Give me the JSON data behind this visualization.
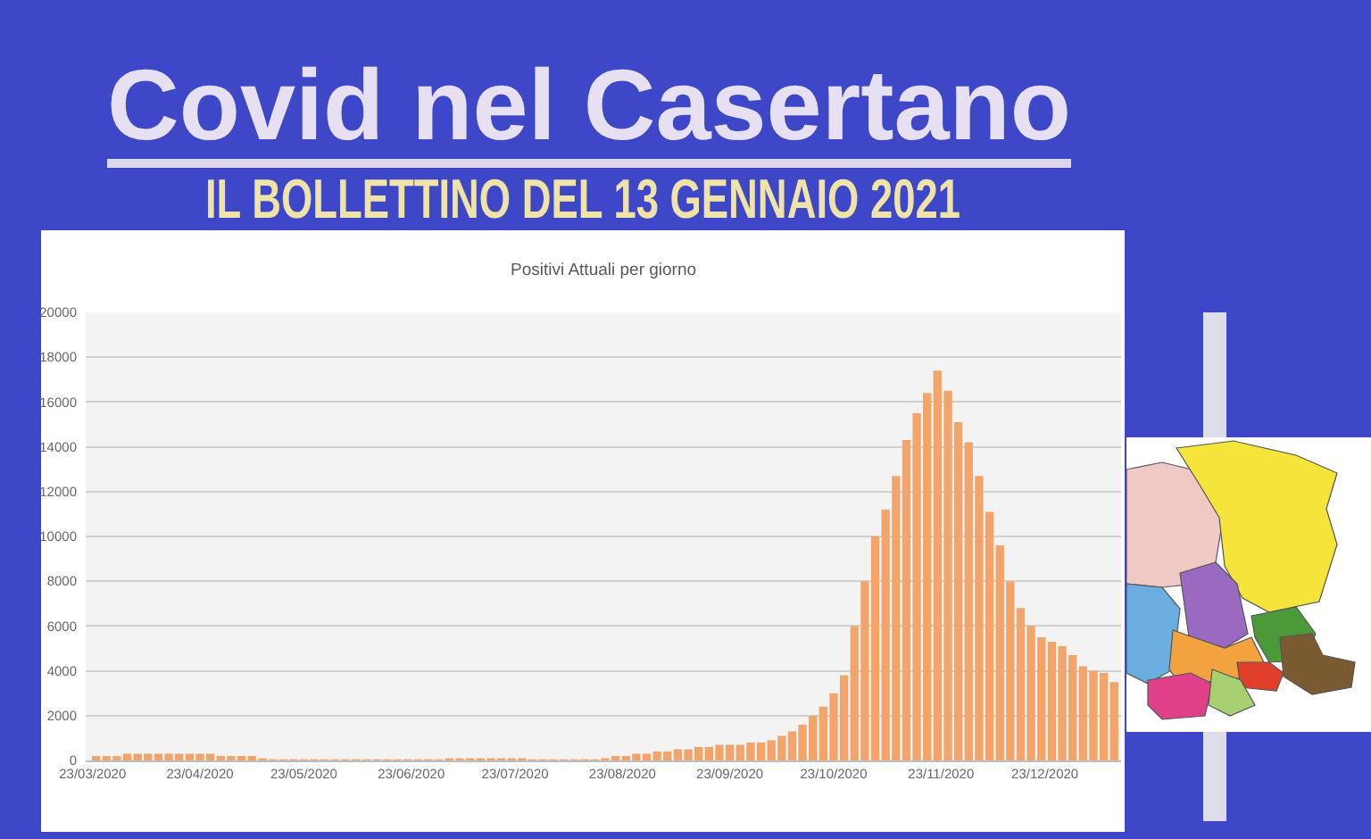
{
  "chart_data": {
    "type": "bar",
    "title": "Covid nel Casertano",
    "subtitle": "IL BOLLETTINO DEL 13 GENNAIO 2021",
    "annotations": [
      "Positivi Attuali per giorno"
    ],
    "x": [
      "2020-03-24",
      "2020-03-27",
      "2020-03-30",
      "2020-04-02",
      "2020-04-05",
      "2020-04-08",
      "2020-04-11",
      "2020-04-14",
      "2020-04-17",
      "2020-04-20",
      "2020-04-23",
      "2020-04-26",
      "2020-04-29",
      "2020-05-02",
      "2020-05-05",
      "2020-05-08",
      "2020-05-11",
      "2020-05-14",
      "2020-05-17",
      "2020-05-20",
      "2020-05-23",
      "2020-05-26",
      "2020-05-29",
      "2020-06-01",
      "2020-06-04",
      "2020-06-07",
      "2020-06-10",
      "2020-06-13",
      "2020-06-16",
      "2020-06-19",
      "2020-06-22",
      "2020-06-25",
      "2020-06-28",
      "2020-07-01",
      "2020-07-04",
      "2020-07-07",
      "2020-07-10",
      "2020-07-13",
      "2020-07-16",
      "2020-07-19",
      "2020-07-22",
      "2020-07-25",
      "2020-07-28",
      "2020-07-31",
      "2020-08-03",
      "2020-08-06",
      "2020-08-09",
      "2020-08-12",
      "2020-08-15",
      "2020-08-18",
      "2020-08-21",
      "2020-08-24",
      "2020-08-27",
      "2020-08-30",
      "2020-09-02",
      "2020-09-05",
      "2020-09-08",
      "2020-09-11",
      "2020-09-14",
      "2020-09-17",
      "2020-09-20",
      "2020-09-23",
      "2020-09-26",
      "2020-09-29",
      "2020-10-02",
      "2020-10-05",
      "2020-10-08",
      "2020-10-11",
      "2020-10-14",
      "2020-10-17",
      "2020-10-20",
      "2020-10-23",
      "2020-10-26",
      "2020-10-29",
      "2020-11-01",
      "2020-11-04",
      "2020-11-07",
      "2020-11-10",
      "2020-11-13",
      "2020-11-16",
      "2020-11-19",
      "2020-11-22",
      "2020-11-25",
      "2020-11-28",
      "2020-12-01",
      "2020-12-04",
      "2020-12-07",
      "2020-12-10",
      "2020-12-13",
      "2020-12-16",
      "2020-12-19",
      "2020-12-22",
      "2020-12-25",
      "2020-12-28",
      "2020-12-31",
      "2021-01-03",
      "2021-01-06",
      "2021-01-09",
      "2021-01-12"
    ],
    "values": [
      200,
      200,
      200,
      300,
      300,
      300,
      300,
      300,
      300,
      300,
      300,
      300,
      200,
      200,
      200,
      200,
      100,
      50,
      50,
      50,
      50,
      50,
      50,
      50,
      50,
      50,
      50,
      50,
      50,
      50,
      50,
      50,
      50,
      50,
      100,
      100,
      100,
      100,
      100,
      100,
      100,
      100,
      50,
      50,
      50,
      50,
      50,
      50,
      50,
      100,
      200,
      200,
      300,
      300,
      400,
      400,
      500,
      500,
      600,
      600,
      700,
      700,
      700,
      800,
      800,
      900,
      1100,
      1300,
      1600,
      2000,
      2400,
      3000,
      3800,
      6000,
      8000,
      10000,
      11200,
      12700,
      14300,
      15500,
      16400,
      17400,
      16500,
      15100,
      14200,
      12700,
      11100,
      9600,
      8000,
      6800,
      6000,
      5500,
      5300,
      5100,
      4700,
      4200,
      4000,
      3900,
      3500
    ],
    "color": "#f2a46a",
    "xlim": [
      "2020-03-21",
      "2021-01-14"
    ],
    "xticks": [
      {
        "value": "2020-03-23",
        "label": "23/03/2020"
      },
      {
        "value": "2020-04-23",
        "label": "23/04/2020"
      },
      {
        "value": "2020-05-23",
        "label": "23/05/2020"
      },
      {
        "value": "2020-06-23",
        "label": "23/06/2020"
      },
      {
        "value": "2020-07-23",
        "label": "23/07/2020"
      },
      {
        "value": "2020-08-23",
        "label": "23/08/2020"
      },
      {
        "value": "2020-09-23",
        "label": "23/09/2020"
      },
      {
        "value": "2020-10-23",
        "label": "23/10/2020"
      },
      {
        "value": "2020-11-23",
        "label": "23/11/2020"
      },
      {
        "value": "2020-12-23",
        "label": "23/12/2020"
      }
    ],
    "ylim": [
      0,
      20000
    ],
    "yticks": [
      0,
      2000,
      4000,
      6000,
      8000,
      10000,
      12000,
      14000,
      16000,
      18000,
      20000
    ],
    "grid": "y"
  }
}
